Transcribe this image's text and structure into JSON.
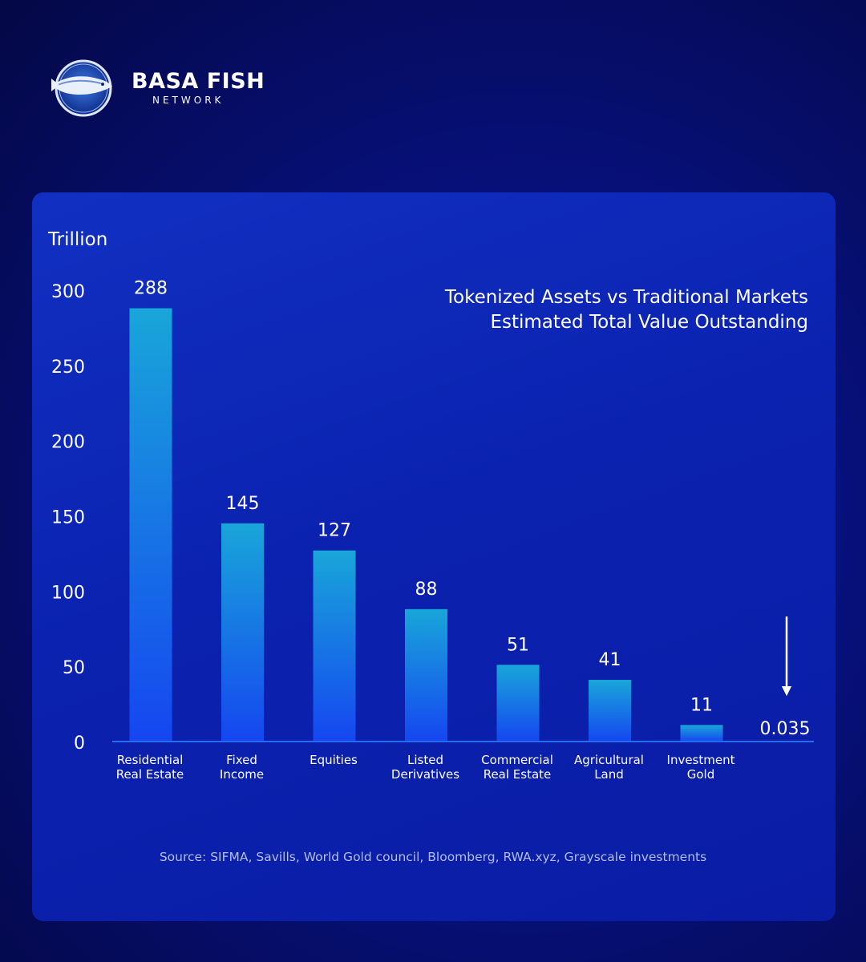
{
  "brand": {
    "name": "BASA FISH",
    "subtitle": "NETWORK"
  },
  "colors": {
    "bar_top": "#19a6d9",
    "bar_bottom": "#1546f0",
    "axis": "#2a6cf0",
    "text": "#ffffff",
    "source_text": "#b3bee6"
  },
  "chart_data": {
    "type": "bar",
    "title": "Tokenized Assets vs Traditional Markets",
    "subtitle": "Estimated Total Value Outstanding",
    "ylabel": "Trillion",
    "ylim": [
      0,
      300
    ],
    "yticks": [
      "300",
      "250",
      "200",
      "150",
      "100",
      "50",
      "0"
    ],
    "categories": [
      [
        "Residential",
        "Real Estate"
      ],
      [
        "Fixed",
        "Income"
      ],
      [
        "Equities"
      ],
      [
        "Listed",
        "Derivatives"
      ],
      [
        "Commercial",
        "Real Estate"
      ],
      [
        "Agricultural",
        "Land"
      ],
      [
        "Investment",
        "Gold"
      ],
      []
    ],
    "values": [
      288,
      145,
      127,
      88,
      51,
      41,
      11,
      0.035
    ],
    "value_labels": [
      "288",
      "145",
      "127",
      "88",
      "51",
      "41",
      "11",
      "0.035"
    ],
    "grid": false,
    "annotation": "arrow pointing down to 0.035"
  },
  "source": "Source: SIFMA, Savills, World Gold council, Bloomberg, RWA.xyz, Grayscale investments"
}
